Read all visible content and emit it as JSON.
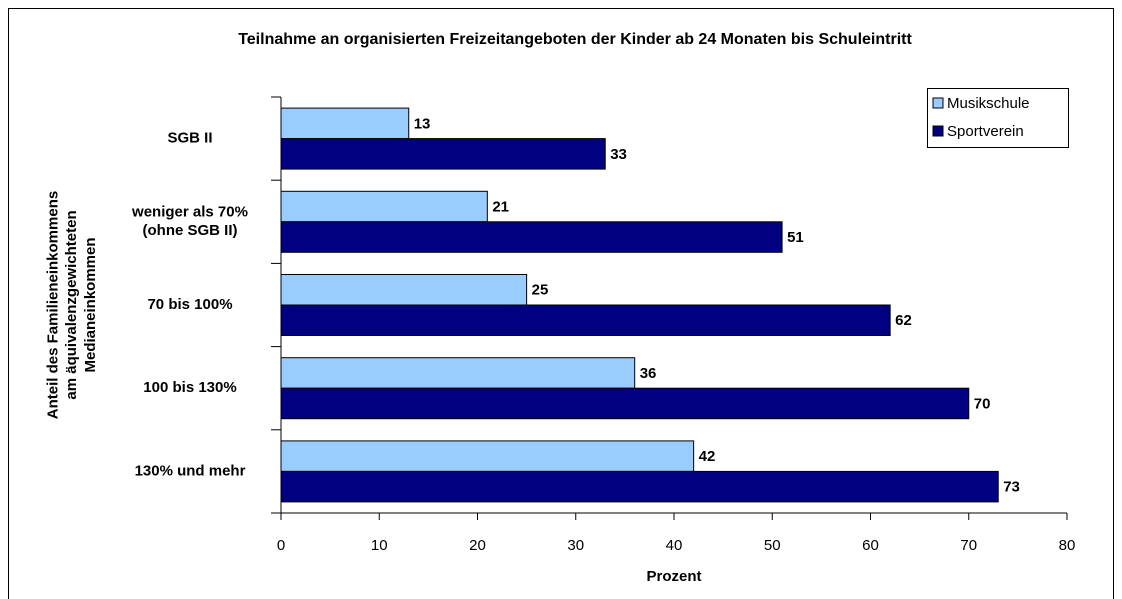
{
  "chart_data": {
    "type": "hbar",
    "title": "Teilnahme an organisierten Freizeitangeboten der Kinder ab 24 Monaten bis Schuleintritt",
    "categories": [
      "SGB II",
      "weniger als 70%\n(ohne SGB II)",
      "70 bis 100%",
      "100 bis 130%",
      "130% und mehr"
    ],
    "series": [
      {
        "name": "Musikschule",
        "color": "#99ccff",
        "values": [
          13,
          21,
          25,
          36,
          42
        ]
      },
      {
        "name": "Sportverein",
        "color": "#000080",
        "values": [
          33,
          51,
          62,
          70,
          73
        ]
      }
    ],
    "x_label": "Prozent",
    "y_label": "Anteil des Familieneinkommens\nam äquivalenzgewichteten\nMedianeinkommen",
    "xlim": [
      0,
      80
    ],
    "xticks": [
      0,
      10,
      20,
      30,
      40,
      50,
      60,
      70,
      80
    ],
    "legend": "upper right",
    "grid": false
  }
}
